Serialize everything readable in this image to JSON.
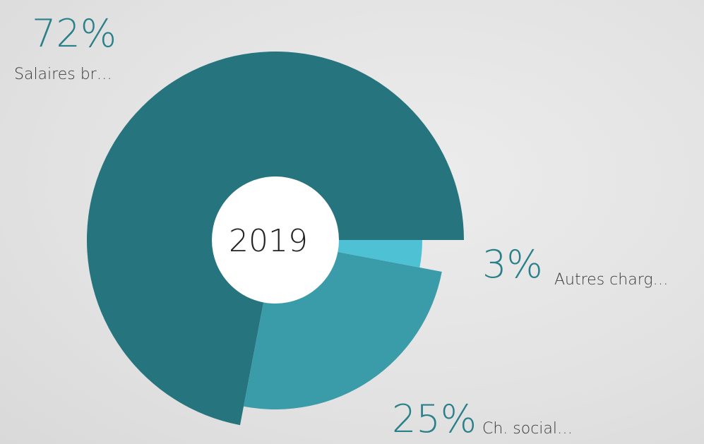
{
  "chart_data": {
    "type": "pie",
    "center_label": "2019",
    "categories": [
      "Salaires br…",
      "Ch. social…",
      "Autres charg…"
    ],
    "values": [
      72,
      25,
      3
    ],
    "value_labels": [
      "72%",
      "25%",
      "3%"
    ],
    "colors": [
      "#25747e",
      "#3a9ba9",
      "#4fc1d5"
    ]
  }
}
